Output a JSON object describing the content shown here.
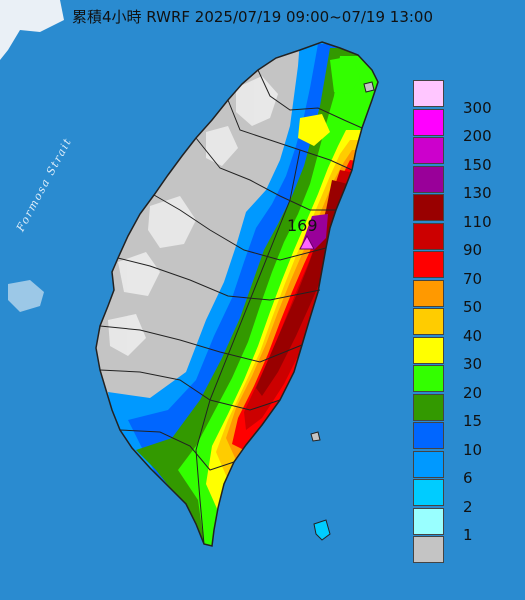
{
  "map": {
    "title": "累積4小時 RWRF 2025/07/19 09:00~07/19 13:00",
    "strait_label": "Formosa Strait",
    "max_value_label": "169",
    "colors": {
      "sea": "#2a8bd0",
      "land_dry": "#c4c4c4",
      "mountain_snow": "#ececec",
      "county_border": "#222222"
    }
  },
  "legend": {
    "entries": [
      {
        "label": "300",
        "color": "#ffc6ff"
      },
      {
        "label": "200",
        "color": "#ff00ff"
      },
      {
        "label": "150",
        "color": "#cc00cc"
      },
      {
        "label": "130",
        "color": "#990099"
      },
      {
        "label": "110",
        "color": "#990000"
      },
      {
        "label": "90",
        "color": "#cc0000"
      },
      {
        "label": "70",
        "color": "#ff0000"
      },
      {
        "label": "50",
        "color": "#ff9900"
      },
      {
        "label": "40",
        "color": "#ffcc00"
      },
      {
        "label": "30",
        "color": "#ffff00"
      },
      {
        "label": "20",
        "color": "#33ff00"
      },
      {
        "label": "15",
        "color": "#339900"
      },
      {
        "label": "10",
        "color": "#0066ff"
      },
      {
        "label": "6",
        "color": "#0099ff"
      },
      {
        "label": "2",
        "color": "#00ccff"
      },
      {
        "label": "1",
        "color": "#99ffff"
      },
      {
        "label": "",
        "color": "#c4c4c4"
      }
    ]
  }
}
